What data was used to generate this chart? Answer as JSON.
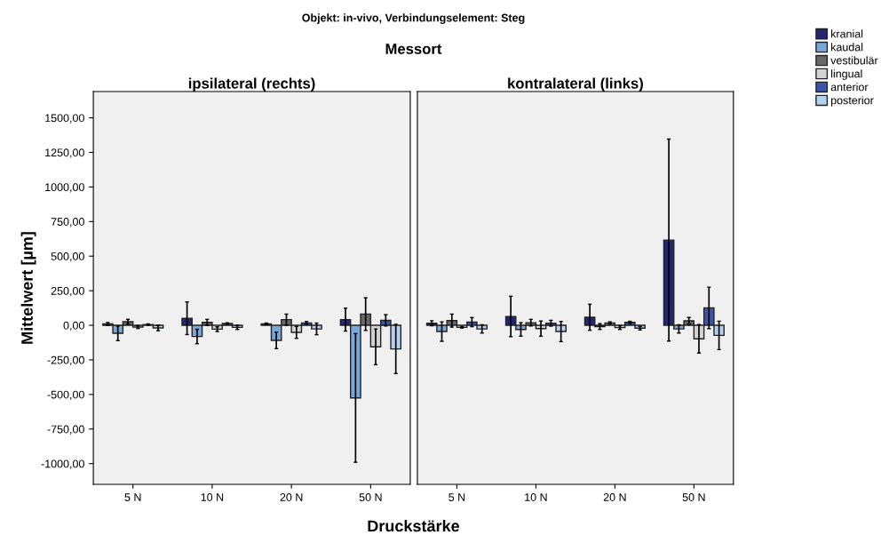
{
  "chart_data": [
    {
      "type": "bar",
      "title": "ipsilateral (rechts)",
      "ylabel": "Mittelwert [µm]",
      "xlabel": "Druckstärke",
      "annotations": [
        "Objekt: in-vivo, Verbindungselement: Steg",
        "Messort"
      ],
      "categories": [
        "5 N",
        "10 N",
        "20 N",
        "50 N"
      ],
      "ylim": [
        -1150,
        1690
      ],
      "yticks": [
        {
          "value": -1000,
          "label": "-1000,00"
        },
        {
          "value": -750,
          "label": "-750,00"
        },
        {
          "value": -500,
          "label": "-500,00"
        },
        {
          "value": -250,
          "label": "-250,00"
        },
        {
          "value": 0,
          "label": "0,00"
        },
        {
          "value": 250,
          "label": "250,00"
        },
        {
          "value": 500,
          "label": "500,00"
        },
        {
          "value": 750,
          "label": "750,00"
        },
        {
          "value": 1000,
          "label": "1000,00"
        },
        {
          "value": 1250,
          "label": "1250,00"
        },
        {
          "value": 1500,
          "label": "1500,00"
        }
      ],
      "legend": "right",
      "grid": false,
      "series": [
        {
          "name": "kranial",
          "color": "#23286e",
          "values": [
            10,
            51,
            11,
            41
          ],
          "errors": [
            10,
            118,
            5,
            83
          ]
        },
        {
          "name": "kaudal",
          "color": "#78a8d8",
          "values": [
            -58,
            -81,
            -109,
            -525
          ],
          "errors": [
            53,
            52,
            60,
            465
          ]
        },
        {
          "name": "vestibulär",
          "color": "#686868",
          "values": [
            26,
            21,
            41,
            81
          ],
          "errors": [
            17,
            22,
            40,
            118
          ]
        },
        {
          "name": "lingual",
          "color": "#d3d3d3",
          "values": [
            -13,
            -28,
            -51,
            -156
          ],
          "errors": [
            10,
            17,
            43,
            129
          ]
        },
        {
          "name": "anterior",
          "color": "#3c55a8",
          "values": [
            5,
            13,
            17,
            36
          ],
          "errors": [
            5,
            5,
            10,
            41
          ]
        },
        {
          "name": "posterior",
          "color": "#b4d2ee",
          "values": [
            -19,
            -15,
            -26,
            -171
          ],
          "errors": [
            20,
            15,
            42,
            178
          ]
        }
      ]
    },
    {
      "type": "bar",
      "title": "kontralateral (links)",
      "categories": [
        "5 N",
        "10 N",
        "20 N",
        "50 N"
      ],
      "ylim": [
        -1150,
        1690
      ],
      "tick_labels": "x",
      "grid": false,
      "series": [
        {
          "color": "#23286e",
          "values": [
            15,
            64,
            58,
            616
          ],
          "errors": [
            18,
            146,
            94,
            730
          ]
        },
        {
          "color": "#78a8d8",
          "values": [
            -45,
            -30,
            -9,
            -26
          ],
          "errors": [
            70,
            49,
            21,
            30
          ]
        },
        {
          "color": "#686868",
          "values": [
            34,
            19,
            17,
            32
          ],
          "errors": [
            47,
            24,
            8,
            24
          ]
        },
        {
          "color": "#d3d3d3",
          "values": [
            -15,
            -24,
            -17,
            -98
          ],
          "errors": [
            5,
            55,
            13,
            103
          ]
        },
        {
          "color": "#3c55a8",
          "values": [
            23,
            15,
            21,
            126
          ],
          "errors": [
            33,
            21,
            8,
            150
          ]
        },
        {
          "color": "#b4d2ee",
          "values": [
            -26,
            -45,
            -21,
            -73
          ],
          "errors": [
            30,
            73,
            13,
            103
          ]
        }
      ]
    }
  ]
}
